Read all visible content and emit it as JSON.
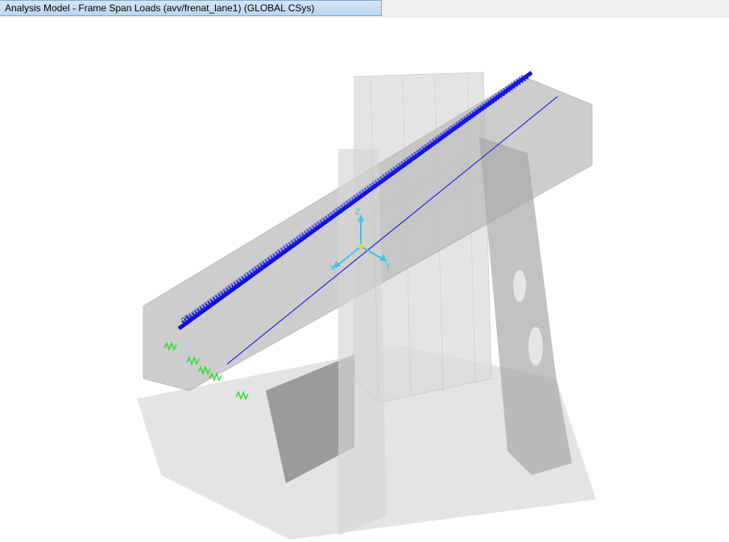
{
  "window": {
    "title": "Analysis Model - Frame Span Loads (avv/frenat_lane1) (GLOBAL CSys)"
  },
  "viewport": {
    "axis_labels": {
      "x": "X",
      "y": "Y",
      "z": "Z"
    },
    "load_label": "25",
    "colors": {
      "load_line": "#1010d8",
      "frame_line": "#2a2ae0",
      "axis": "#3ec6e8",
      "spring": "#33dd33",
      "shell": "#d2d2d2",
      "shell_dark": "#8e8e8e"
    }
  }
}
